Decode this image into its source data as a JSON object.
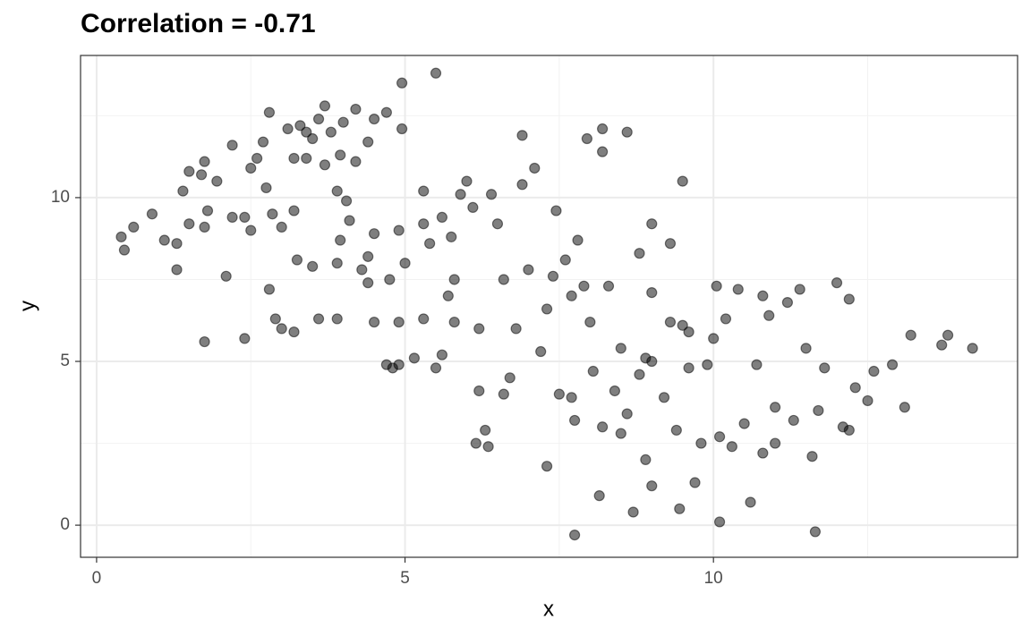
{
  "chart_data": {
    "type": "scatter",
    "title": "Correlation =  -0.71",
    "x_label": "x",
    "y_label": "y",
    "xlim": [
      -0.26,
      14.93
    ],
    "ylim": [
      -0.98,
      14.34
    ],
    "xticks": [
      0,
      5,
      10
    ],
    "yticks": [
      0,
      5,
      10
    ],
    "minor_xticks": [
      2.5,
      7.5,
      12.5
    ],
    "minor_yticks": [
      2.5,
      7.5,
      12.5
    ],
    "grid": true,
    "color": "#000000",
    "opacity": 0.5,
    "x": [
      0.4,
      0.45,
      0.6,
      0.9,
      1.1,
      1.3,
      1.3,
      1.4,
      1.5,
      1.5,
      1.7,
      1.75,
      1.8,
      1.75,
      1.75,
      1.95,
      2.2,
      2.2,
      2.1,
      2.4,
      2.4,
      2.5,
      2.5,
      2.6,
      2.7,
      2.75,
      2.8,
      2.85,
      2.8,
      2.9,
      3.0,
      3.0,
      3.1,
      3.2,
      3.2,
      3.2,
      3.25,
      3.3,
      3.4,
      3.4,
      3.5,
      3.5,
      3.6,
      3.6,
      3.7,
      3.7,
      3.8,
      3.9,
      3.95,
      4.0,
      3.95,
      3.9,
      3.9,
      4.05,
      4.2,
      4.2,
      4.1,
      4.4,
      4.3,
      4.4,
      4.5,
      4.4,
      4.5,
      4.5,
      4.7,
      4.7,
      4.8,
      4.95,
      4.9,
      5.0,
      4.75,
      4.9,
      4.9,
      5.15,
      4.95,
      5.3,
      5.3,
      5.3,
      5.4,
      5.5,
      5.6,
      5.6,
      5.5,
      5.7,
      5.75,
      5.8,
      5.8,
      5.9,
      6.0,
      6.1,
      6.2,
      6.2,
      6.15,
      6.3,
      6.35,
      6.4,
      6.5,
      6.6,
      6.6,
      6.7,
      6.8,
      6.9,
      6.9,
      7.0,
      7.1,
      7.2,
      7.3,
      7.3,
      7.4,
      7.45,
      7.5,
      7.6,
      7.7,
      7.7,
      7.75,
      7.75,
      7.8,
      7.9,
      7.95,
      8.0,
      8.05,
      8.2,
      8.2,
      8.15,
      8.2,
      8.3,
      8.4,
      8.5,
      8.6,
      8.6,
      8.7,
      8.8,
      8.8,
      8.9,
      8.9,
      9.0,
      9.0,
      9.0,
      9.2,
      9.3,
      9.3,
      9.4,
      9.45,
      9.5,
      9.5,
      9.6,
      9.7,
      9.8,
      9.9,
      10.0,
      10.05,
      10.1,
      10.1,
      10.2,
      10.4,
      10.5,
      10.6,
      10.7,
      10.8,
      10.8,
      10.9,
      11.0,
      11.2,
      11.3,
      11.4,
      11.5,
      11.6,
      11.65,
      11.7,
      11.8,
      12.0,
      12.1,
      12.2,
      12.3,
      12.5,
      12.6,
      12.9,
      13.1,
      13.2,
      13.7,
      13.8,
      14.2,
      9.0,
      8.5,
      10.3,
      11.0,
      12.2,
      9.6
    ],
    "values": [
      8.8,
      8.4,
      9.1,
      9.5,
      8.7,
      8.6,
      7.8,
      10.2,
      10.8,
      9.2,
      10.7,
      11.1,
      9.6,
      9.1,
      5.6,
      10.5,
      11.6,
      9.4,
      7.6,
      9.4,
      5.7,
      9.0,
      10.9,
      11.2,
      11.7,
      10.3,
      12.6,
      9.5,
      7.2,
      6.3,
      6.0,
      9.1,
      12.1,
      11.2,
      9.6,
      5.9,
      8.1,
      12.2,
      11.2,
      12.0,
      7.9,
      11.8,
      12.4,
      6.3,
      11.0,
      12.8,
      12.0,
      6.3,
      11.3,
      12.3,
      8.7,
      8.0,
      10.2,
      9.9,
      11.1,
      12.7,
      9.3,
      11.7,
      7.8,
      8.2,
      12.4,
      7.4,
      8.9,
      6.2,
      12.6,
      4.9,
      4.8,
      12.1,
      9.0,
      8.0,
      7.5,
      6.2,
      4.9,
      5.1,
      13.5,
      10.2,
      9.2,
      6.3,
      8.6,
      4.8,
      5.2,
      9.4,
      13.8,
      7.0,
      8.8,
      6.2,
      7.5,
      10.1,
      10.5,
      9.7,
      6.0,
      4.1,
      2.5,
      2.9,
      2.4,
      10.1,
      9.2,
      7.5,
      4.0,
      4.5,
      6.0,
      10.4,
      11.9,
      7.8,
      10.9,
      5.3,
      6.6,
      1.8,
      7.6,
      9.6,
      4.0,
      8.1,
      7.0,
      3.9,
      3.2,
      -0.3,
      8.7,
      7.3,
      11.8,
      6.2,
      4.7,
      12.1,
      11.4,
      0.9,
      3.0,
      7.3,
      4.1,
      5.4,
      12.0,
      3.4,
      0.4,
      8.3,
      4.6,
      5.1,
      2.0,
      9.2,
      7.1,
      1.2,
      3.9,
      8.6,
      6.2,
      2.9,
      0.5,
      10.5,
      6.1,
      4.8,
      1.3,
      2.5,
      4.9,
      5.7,
      7.3,
      2.7,
      0.1,
      6.3,
      7.2,
      3.1,
      0.7,
      4.9,
      2.2,
      7.0,
      6.4,
      3.6,
      6.8,
      3.2,
      7.2,
      5.4,
      2.1,
      -0.2,
      3.5,
      4.8,
      7.4,
      3.0,
      6.9,
      4.2,
      3.8,
      4.7,
      4.9,
      3.6,
      5.8,
      5.5,
      5.8,
      5.4,
      5.0,
      2.8,
      2.4,
      2.5,
      2.9,
      5.9
    ]
  }
}
